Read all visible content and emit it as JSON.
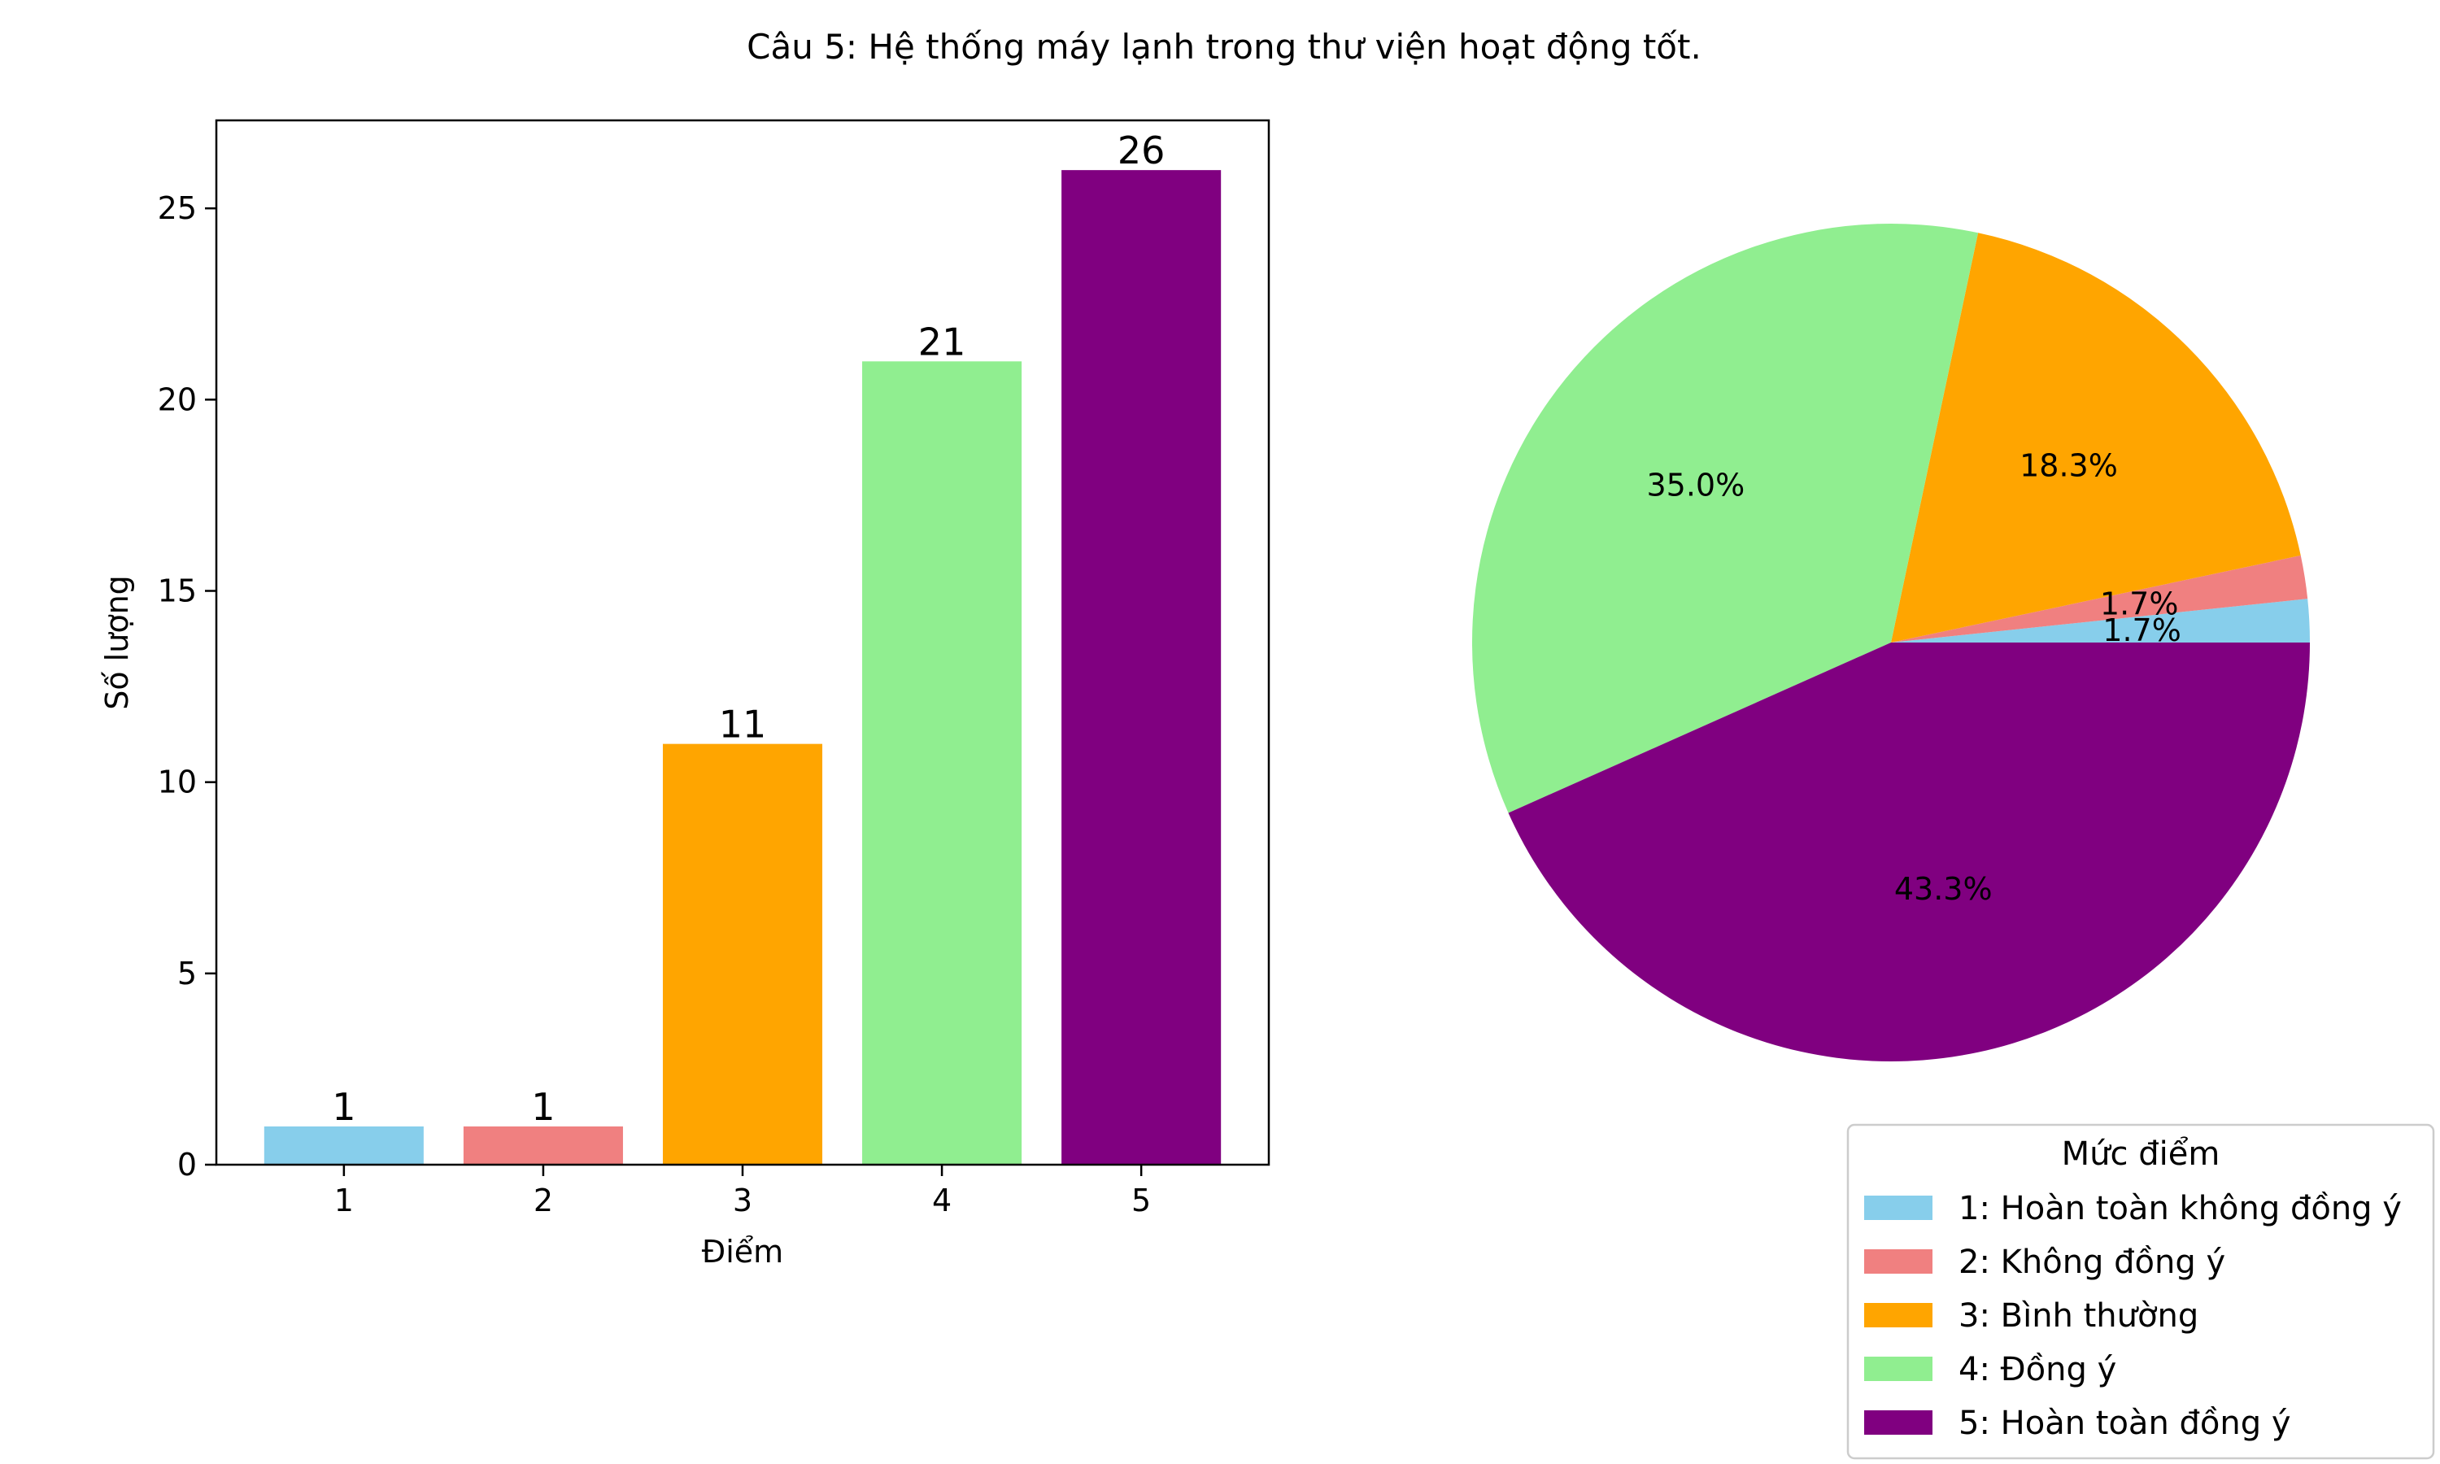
{
  "title": "Câu 5: Hệ thống máy lạnh trong thư viện hoạt động tốt.",
  "chart_data": [
    {
      "type": "bar",
      "categories": [
        "1",
        "2",
        "3",
        "4",
        "5"
      ],
      "values": [
        1,
        1,
        11,
        21,
        26
      ],
      "data_labels": [
        "1",
        "1",
        "11",
        "21",
        "26"
      ],
      "colors": [
        "#87ceeb",
        "#f08080",
        "#ffa500",
        "#90ee90",
        "#800080"
      ],
      "xlabel": "Điểm",
      "ylabel": "Số lượng",
      "ylim": [
        0,
        27.3
      ],
      "yticks": [
        0,
        5,
        10,
        15,
        20,
        25
      ],
      "grid": false
    },
    {
      "type": "pie",
      "labels": [
        "1: Hoàn toàn không đồng ý",
        "2: Không đồng ý",
        "3: Bình thường",
        "4: Đồng ý",
        "5: Hoàn toàn đồng ý"
      ],
      "values": [
        1,
        1,
        11,
        21,
        26
      ],
      "percent_labels": [
        "1.7%",
        "1.7%",
        "18.3%",
        "35.0%",
        "43.3%"
      ],
      "colors": [
        "#87ceeb",
        "#f08080",
        "#ffa500",
        "#90ee90",
        "#800080"
      ],
      "start_angle": 0,
      "legend_title": "Mức điểm",
      "legend_position": "lower-right"
    }
  ]
}
